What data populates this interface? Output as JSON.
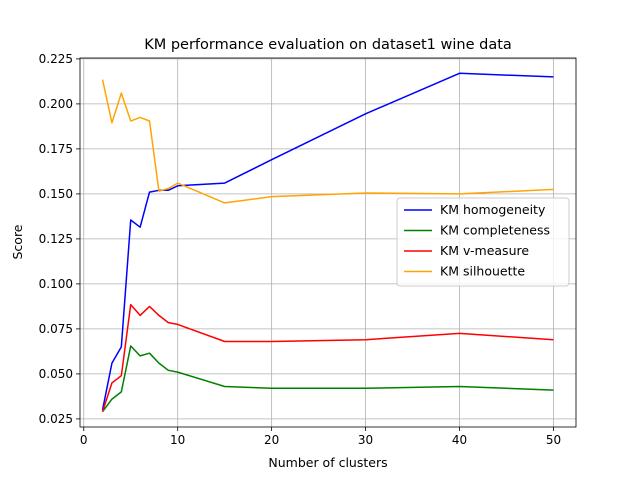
{
  "chart_data": {
    "type": "line",
    "title": "KM performance evaluation on dataset1 wine data",
    "xlabel": "Number of clusters",
    "ylabel": "Score",
    "xlim": [
      -0.4,
      52.4
    ],
    "ylim": [
      0.0205,
      0.2255
    ],
    "xticks": [
      0,
      10,
      20,
      30,
      40,
      50
    ],
    "yticks": [
      0.025,
      0.05,
      0.075,
      0.1,
      0.125,
      0.15,
      0.175,
      0.2,
      0.225
    ],
    "ytick_labels": [
      "0.025",
      "0.050",
      "0.075",
      "0.100",
      "0.125",
      "0.150",
      "0.175",
      "0.200",
      "0.225"
    ],
    "grid": true,
    "legend_position": "center-right",
    "x": [
      2,
      3,
      4,
      5,
      6,
      7,
      8,
      9,
      10,
      15,
      20,
      30,
      40,
      50
    ],
    "series": [
      {
        "name": "KM homogeneity",
        "color": "#0000ff",
        "values": [
          0.03,
          0.056,
          0.065,
          0.1355,
          0.1315,
          0.151,
          0.152,
          0.152,
          0.1545,
          0.156,
          0.169,
          0.1945,
          0.217,
          0.215
        ]
      },
      {
        "name": "KM completeness",
        "color": "#008000",
        "values": [
          0.029,
          0.036,
          0.04,
          0.0655,
          0.06,
          0.0615,
          0.056,
          0.052,
          0.051,
          0.043,
          0.042,
          0.042,
          0.043,
          0.041
        ]
      },
      {
        "name": "KM v-measure",
        "color": "#ff0000",
        "values": [
          0.029,
          0.045,
          0.049,
          0.0885,
          0.0825,
          0.0875,
          0.0825,
          0.0785,
          0.0775,
          0.068,
          0.068,
          0.069,
          0.0725,
          0.069
        ]
      },
      {
        "name": "KM silhouette",
        "color": "#ffa500",
        "values": [
          0.2135,
          0.1895,
          0.206,
          0.1905,
          0.1925,
          0.1905,
          0.1515,
          0.153,
          0.156,
          0.145,
          0.1485,
          0.1505,
          0.15,
          0.1525
        ]
      }
    ]
  }
}
